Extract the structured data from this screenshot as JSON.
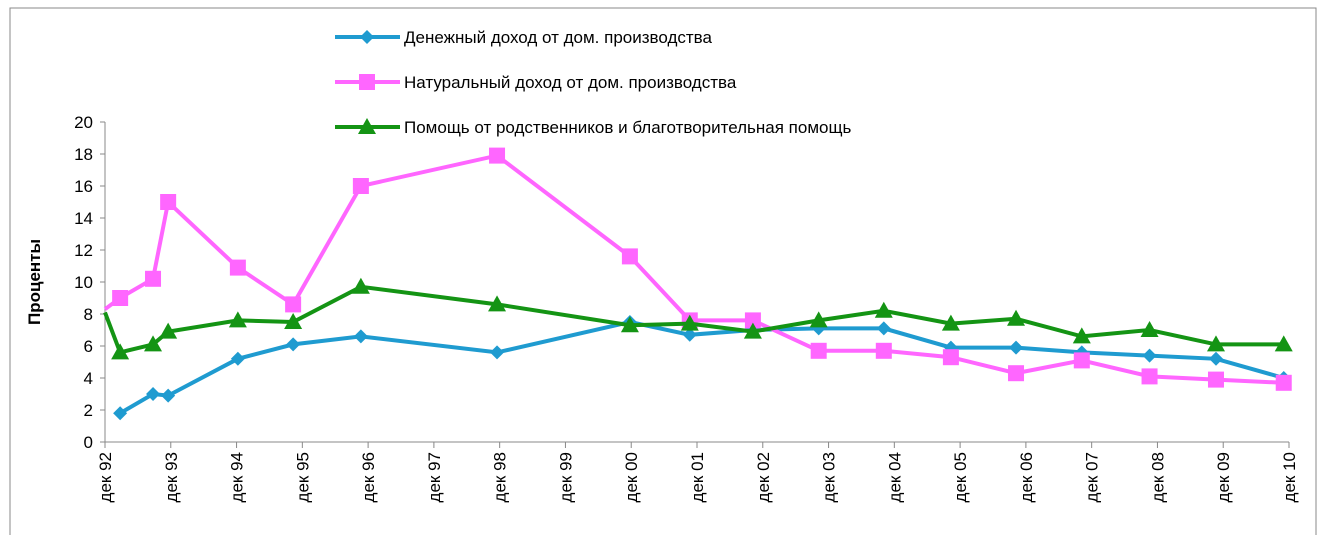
{
  "chart_data": {
    "type": "line",
    "ylabel": "Проценты",
    "xlim": [
      0,
      18
    ],
    "ylim": [
      0,
      20
    ],
    "yticks": [
      0,
      2,
      4,
      6,
      8,
      10,
      12,
      14,
      16,
      18,
      20
    ],
    "xticks": [
      {
        "value": 0,
        "label": "дек 92"
      },
      {
        "value": 1,
        "label": "дек 93"
      },
      {
        "value": 2,
        "label": "дек 94"
      },
      {
        "value": 3,
        "label": "дек 95"
      },
      {
        "value": 4,
        "label": "дек 96"
      },
      {
        "value": 5,
        "label": "дек 97"
      },
      {
        "value": 6,
        "label": "дек 98"
      },
      {
        "value": 7,
        "label": "дек 99"
      },
      {
        "value": 8,
        "label": "дек 00"
      },
      {
        "value": 9,
        "label": "дек 01"
      },
      {
        "value": 10,
        "label": "дек 02"
      },
      {
        "value": 11,
        "label": "дек 03"
      },
      {
        "value": 12,
        "label": "дек 04"
      },
      {
        "value": 13,
        "label": "дек 05"
      },
      {
        "value": 14,
        "label": "дек 06"
      },
      {
        "value": 15,
        "label": "дек 07"
      },
      {
        "value": 16,
        "label": "дек 08"
      },
      {
        "value": 17,
        "label": "дек 09"
      },
      {
        "value": 18,
        "label": "дек 10"
      }
    ],
    "series": [
      {
        "name": "Денежный доход от дом. производства",
        "color": "#1f9bd0",
        "marker": "diamond",
        "x": [
          0.23,
          0.73,
          0.96,
          2.02,
          2.86,
          3.89,
          5.96,
          7.98,
          8.89,
          9.85,
          10.85,
          11.84,
          12.86,
          13.85,
          14.85,
          15.88,
          16.89,
          17.92
        ],
        "values": [
          1.8,
          3.0,
          2.9,
          5.2,
          6.1,
          6.6,
          5.6,
          7.5,
          6.7,
          7.0,
          7.1,
          7.1,
          5.9,
          5.9,
          5.6,
          5.4,
          5.2,
          4.0
        ]
      },
      {
        "name": "Натуральный доход от дом. производства",
        "color": "#ff66ff",
        "marker": "square",
        "x": [
          0,
          0.23,
          0.73,
          0.96,
          2.02,
          2.86,
          3.89,
          5.96,
          7.98,
          8.89,
          9.85,
          10.85,
          11.84,
          12.86,
          13.85,
          14.85,
          15.88,
          16.89,
          17.92
        ],
        "values": [
          8.3,
          9.0,
          10.2,
          15.0,
          10.9,
          8.6,
          16.0,
          17.9,
          11.6,
          7.6,
          7.6,
          5.7,
          5.7,
          5.3,
          4.3,
          5.1,
          4.1,
          3.9,
          3.7
        ]
      },
      {
        "name": "Помощь от родственников и благотворительная помощь",
        "color": "#149414",
        "marker": "triangle",
        "x": [
          0,
          0.23,
          0.73,
          0.96,
          2.02,
          2.86,
          3.89,
          5.96,
          7.98,
          8.89,
          9.85,
          10.85,
          11.84,
          12.86,
          13.85,
          14.85,
          15.88,
          16.89,
          17.92
        ],
        "values": [
          8.1,
          5.6,
          6.1,
          6.9,
          7.6,
          7.5,
          9.7,
          8.6,
          7.3,
          7.4,
          6.9,
          7.6,
          8.2,
          7.4,
          7.7,
          6.6,
          7.0,
          6.1,
          6.1
        ]
      }
    ]
  }
}
